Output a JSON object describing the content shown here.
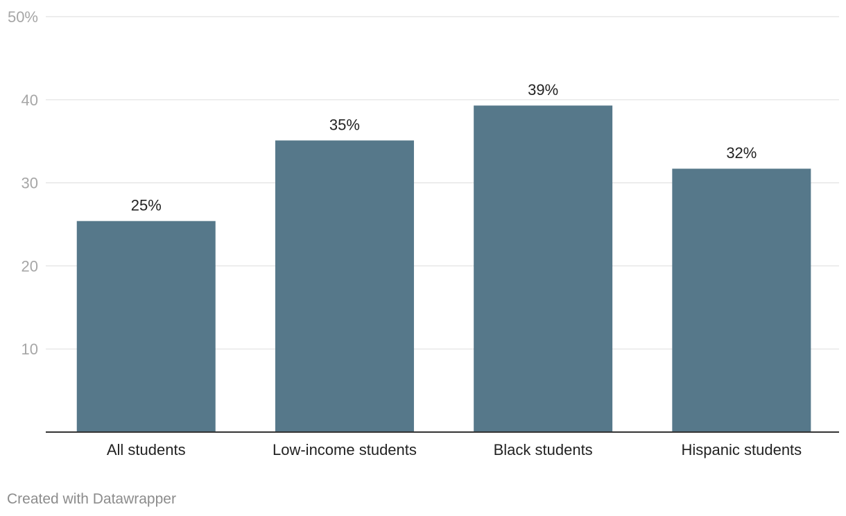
{
  "chart_data": {
    "type": "bar",
    "categories": [
      "All students",
      "Low-income students",
      "Black students",
      "Hispanic students"
    ],
    "values": [
      25.4,
      35.1,
      39.3,
      31.7
    ],
    "value_labels": [
      "25%",
      "35%",
      "39%",
      "32%"
    ],
    "title": "",
    "xlabel": "",
    "ylabel": "",
    "ylim": [
      0,
      50
    ],
    "yticks": [
      10,
      20,
      30,
      40,
      50
    ],
    "ytick_labels": [
      "10",
      "20",
      "30",
      "40",
      "50%"
    ],
    "grid": true,
    "colors": {
      "bar": "#56788a",
      "grid": "#e2e2e2",
      "axis": "#333333",
      "tick_text": "#a6a6a6",
      "label_text": "#222222"
    }
  },
  "footer": {
    "credit": "Created with Datawrapper"
  }
}
